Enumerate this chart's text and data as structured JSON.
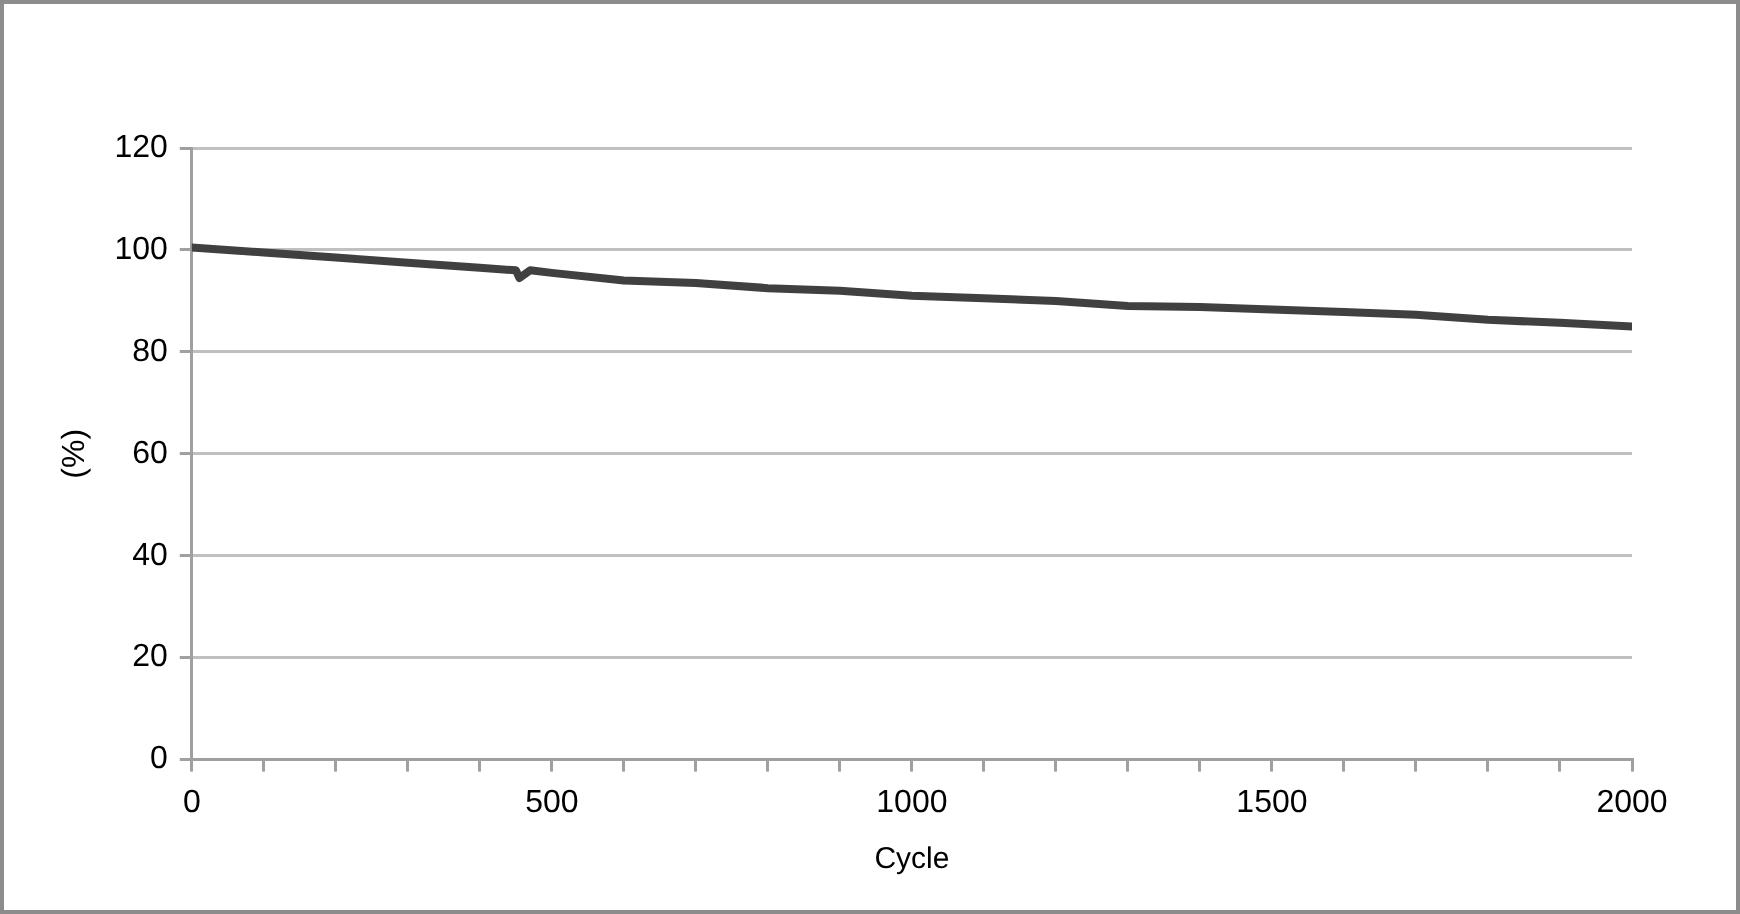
{
  "chart_data": {
    "type": "line",
    "xlabel": "Cycle",
    "ylabel": "(%)",
    "x": [
      0,
      100,
      200,
      300,
      400,
      450,
      455,
      470,
      500,
      600,
      700,
      800,
      900,
      1000,
      1100,
      1200,
      1300,
      1400,
      1500,
      1600,
      1700,
      1800,
      1900,
      2000
    ],
    "series": [
      {
        "color": "#404040",
        "values": [
          100.5,
          99.5,
          98.5,
          97.5,
          96.5,
          96,
          94.5,
          96,
          95.5,
          94,
          93.5,
          92.5,
          92,
          91,
          90.5,
          90,
          89,
          88.8,
          88.3,
          87.8,
          87.3,
          86.3,
          85.7,
          85
        ]
      }
    ],
    "xlim": [
      0,
      2000
    ],
    "xticks": [
      0,
      {
        "value": 100,
        "label": null
      },
      {
        "value": 200,
        "label": null
      },
      {
        "value": 300,
        "label": null
      },
      {
        "value": 400,
        "label": null
      },
      500,
      {
        "value": 600,
        "label": null
      },
      {
        "value": 700,
        "label": null
      },
      {
        "value": 800,
        "label": null
      },
      {
        "value": 900,
        "label": null
      },
      1000,
      {
        "value": 1100,
        "label": null
      },
      {
        "value": 1200,
        "label": null
      },
      {
        "value": 1300,
        "label": null
      },
      {
        "value": 1400,
        "label": null
      },
      1500,
      {
        "value": 1600,
        "label": null
      },
      {
        "value": 1700,
        "label": null
      },
      {
        "value": 1800,
        "label": null
      },
      {
        "value": 1900,
        "label": null
      },
      2000
    ],
    "ylim": [
      0,
      120
    ],
    "yticks": [
      0,
      20,
      40,
      60,
      80,
      100,
      120
    ],
    "grid": "y",
    "legend": false,
    "marker": "none",
    "line_style": "solid"
  }
}
